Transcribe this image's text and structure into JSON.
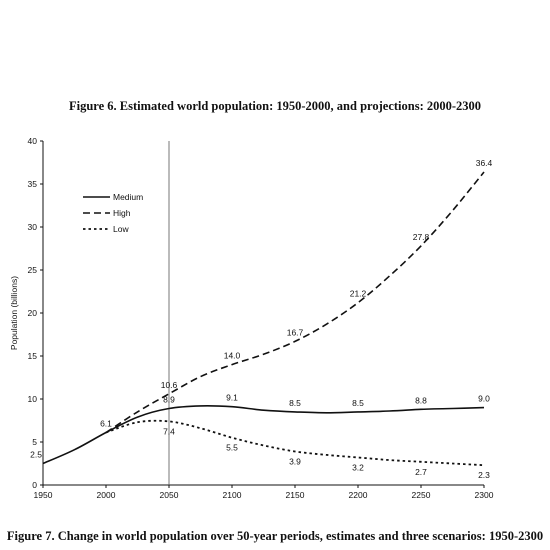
{
  "figure6_title": "Figure 6. Estimated world population: 1950-2000, and projections: 2000-2300",
  "figure7_title": "Figure 7. Change in world population over 50-year periods, estimates and three scenarios: 1950-2300",
  "chart_data": {
    "type": "line",
    "ylabel": "Population (billions)",
    "xlim": [
      1950,
      2300
    ],
    "ylim": [
      0,
      40
    ],
    "x_ticks": [
      1950,
      2000,
      2050,
      2100,
      2150,
      2200,
      2250,
      2300
    ],
    "y_ticks": [
      0,
      5,
      10,
      15,
      20,
      25,
      30,
      35,
      40
    ],
    "grid": false,
    "legend_position": "top-left",
    "reference_line_x": 2050,
    "series": [
      {
        "name": "Medium",
        "style": "solid",
        "x": [
          1950,
          1975,
          2000,
          2025,
          2050,
          2075,
          2100,
          2125,
          2150,
          2175,
          2200,
          2225,
          2250,
          2275,
          2300
        ],
        "y": [
          2.5,
          4.1,
          6.1,
          7.9,
          8.9,
          9.2,
          9.1,
          8.7,
          8.5,
          8.4,
          8.5,
          8.6,
          8.8,
          8.9,
          9.0
        ]
      },
      {
        "name": "High",
        "style": "dashed",
        "x": [
          2000,
          2025,
          2050,
          2075,
          2100,
          2125,
          2150,
          2175,
          2200,
          2225,
          2250,
          2275,
          2300
        ],
        "y": [
          6.1,
          8.5,
          10.6,
          12.6,
          14.0,
          15.2,
          16.7,
          18.7,
          21.2,
          24.3,
          27.8,
          31.9,
          36.4
        ]
      },
      {
        "name": "Low",
        "style": "dotted",
        "x": [
          2000,
          2025,
          2050,
          2075,
          2100,
          2125,
          2150,
          2175,
          2200,
          2225,
          2250,
          2275,
          2300
        ],
        "y": [
          6.1,
          7.3,
          7.4,
          6.6,
          5.5,
          4.6,
          3.9,
          3.5,
          3.2,
          2.9,
          2.7,
          2.5,
          2.3
        ]
      }
    ],
    "data_labels": [
      {
        "x": 1950,
        "y": 2.5,
        "text": "2.5",
        "pos": "w"
      },
      {
        "x": 2000,
        "y": 6.1,
        "text": "6.1",
        "pos": "n"
      },
      {
        "x": 2050,
        "y": 10.6,
        "text": "10.6",
        "pos": "n"
      },
      {
        "x": 2050,
        "y": 8.9,
        "text": "8.9",
        "pos": "n"
      },
      {
        "x": 2050,
        "y": 7.4,
        "text": "7.4",
        "pos": "s"
      },
      {
        "x": 2100,
        "y": 14.0,
        "text": "14.0",
        "pos": "n"
      },
      {
        "x": 2100,
        "y": 9.1,
        "text": "9.1",
        "pos": "n"
      },
      {
        "x": 2100,
        "y": 5.5,
        "text": "5.5",
        "pos": "s"
      },
      {
        "x": 2150,
        "y": 16.7,
        "text": "16.7",
        "pos": "n"
      },
      {
        "x": 2150,
        "y": 8.5,
        "text": "8.5",
        "pos": "n"
      },
      {
        "x": 2150,
        "y": 3.9,
        "text": "3.9",
        "pos": "s"
      },
      {
        "x": 2200,
        "y": 21.2,
        "text": "21.2",
        "pos": "n"
      },
      {
        "x": 2200,
        "y": 8.5,
        "text": "8.5",
        "pos": "n"
      },
      {
        "x": 2200,
        "y": 3.2,
        "text": "3.2",
        "pos": "s"
      },
      {
        "x": 2250,
        "y": 27.8,
        "text": "27.8",
        "pos": "n"
      },
      {
        "x": 2250,
        "y": 8.8,
        "text": "8.8",
        "pos": "n"
      },
      {
        "x": 2250,
        "y": 2.7,
        "text": "2.7",
        "pos": "s"
      },
      {
        "x": 2300,
        "y": 36.4,
        "text": "36.4",
        "pos": "n"
      },
      {
        "x": 2300,
        "y": 9.0,
        "text": "9.0",
        "pos": "n"
      },
      {
        "x": 2300,
        "y": 2.3,
        "text": "2.3",
        "pos": "s"
      }
    ]
  }
}
